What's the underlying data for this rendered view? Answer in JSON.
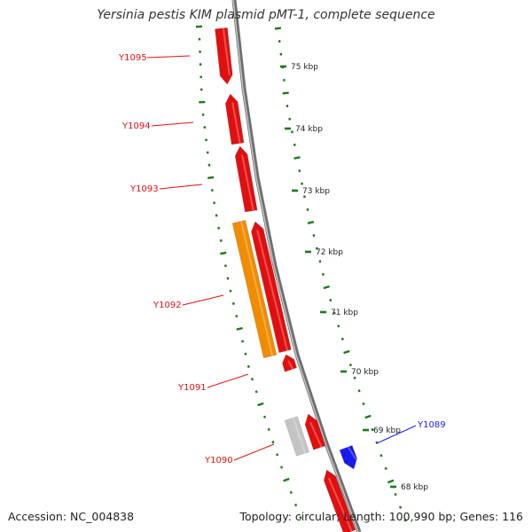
{
  "title": "Yersinia pestis KIM plasmid pMT-1, complete sequence",
  "footer": {
    "accession_label": "Accession:",
    "accession": "NC_004838",
    "topology_label": "Topology:",
    "topology": "circular",
    "length_label": "Length:",
    "length": "100,990 bp",
    "genes_label": "Genes:",
    "genes": "116"
  },
  "colors": {
    "backbone": "#8a8a8a",
    "tick": "#1a7a1a",
    "gene_forward": "#e01010",
    "gene_reverse": "#1a1aee",
    "gene_orange": "#f08c00",
    "gene_gray": "#c4c4c4",
    "label_red": "#e01010",
    "label_blue": "#1a1aee"
  },
  "scale_labels": [
    "75 kbp",
    "74 kbp",
    "73 kbp",
    "72 kbp",
    "71 kbp",
    "70 kbp",
    "69 kbp",
    "68 kbp"
  ],
  "gene_labels": [
    {
      "text": "Y1095",
      "color": "red"
    },
    {
      "text": "Y1094",
      "color": "red"
    },
    {
      "text": "Y1093",
      "color": "red"
    },
    {
      "text": "Y1092",
      "color": "red"
    },
    {
      "text": "Y1091",
      "color": "red"
    },
    {
      "text": "Y1090",
      "color": "red"
    },
    {
      "text": "Y1089",
      "color": "blue"
    }
  ]
}
